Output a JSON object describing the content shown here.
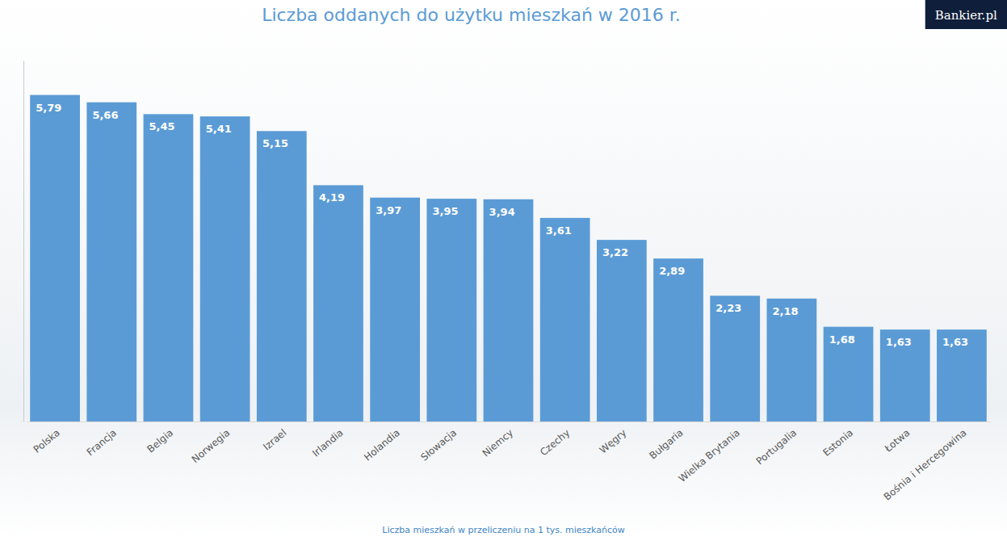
{
  "chart_data": {
    "type": "bar",
    "title": "Liczba oddanych do użytku mieszkań w 2016 r.",
    "source": "Bankier.pl",
    "x_label": "Liczba mieszkań w przeliczeniu na 1 tys. mieszkańców",
    "categories": [
      "Polska",
      "Francja",
      "Belgia",
      "Norwegia",
      "Izrael",
      "Irlandia",
      "Holandia",
      "Słowacja",
      "Niemcy",
      "Czechy",
      "Węgry",
      "Bułgaria",
      "Wielka Brytania",
      "Portugalia",
      "Estonia",
      "Łotwa",
      "Bośnia i Hercegowina"
    ],
    "values": [
      5.79,
      5.66,
      5.45,
      5.41,
      5.15,
      4.19,
      3.97,
      3.95,
      3.94,
      3.61,
      3.22,
      2.89,
      2.23,
      2.18,
      1.68,
      1.63,
      1.63
    ],
    "value_labels": [
      "5,79",
      "5,66",
      "5,45",
      "5,41",
      "5,15",
      "4,19",
      "3,97",
      "3,95",
      "3,94",
      "3,61",
      "3,22",
      "2,89",
      "2,23",
      "2,18",
      "1,68",
      "1,63",
      "1,63"
    ],
    "color": "#5b9bd5",
    "ylim": [
      0,
      6.4
    ],
    "yticks": [],
    "grid": false,
    "data_labels": true,
    "tick_labels": "x"
  }
}
